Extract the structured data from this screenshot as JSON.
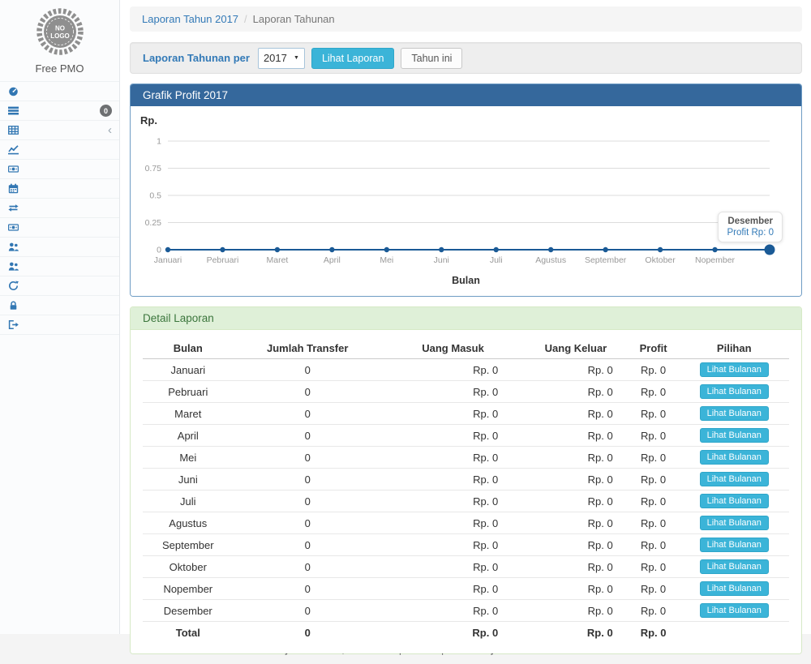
{
  "sidebar": {
    "logo_line1": "NO",
    "logo_line2": "LOGO",
    "brand": "Free PMO",
    "items": [
      {
        "icon": "dashboard-icon",
        "label": "Dashboard"
      },
      {
        "icon": "tasks-icon",
        "label": "Job on Progress",
        "badge": "0"
      },
      {
        "icon": "table-icon",
        "label": "Daftar Project",
        "chevron": "‹"
      },
      {
        "icon": "line-chart-icon",
        "label": "Penghasilan"
      },
      {
        "icon": "money-icon",
        "label": "Piutang"
      },
      {
        "icon": "calendar-icon",
        "label": "Calendar"
      },
      {
        "icon": "retweet-icon",
        "label": "Langganan"
      },
      {
        "icon": "money-icon",
        "label": "Daftar Pembayaran"
      },
      {
        "icon": "users-icon",
        "label": "Daftar Customer"
      },
      {
        "icon": "users-icon",
        "label": "Daftar Vendor"
      },
      {
        "icon": "refresh-icon",
        "label": "Backup/Restore DB"
      },
      {
        "icon": "lock-icon",
        "label": "Ganti Password"
      },
      {
        "icon": "sign-out-icon",
        "label": "Keluar"
      }
    ]
  },
  "breadcrumb": {
    "link": "Laporan Tahun 2017",
    "separator": "/",
    "current": "Laporan Tahunan"
  },
  "filter": {
    "label": "Laporan Tahunan per",
    "year_value": "2017",
    "submit_label": "Lihat Laporan",
    "this_year_label": "Tahun ini"
  },
  "chart_panel": {
    "title": "Grafik Profit 2017"
  },
  "chart_data": {
    "type": "line",
    "title": "Grafik Profit 2017",
    "x": [
      "Januari",
      "Pebruari",
      "Maret",
      "April",
      "Mei",
      "Juni",
      "Juli",
      "Agustus",
      "September",
      "Oktober",
      "Nopember",
      "Desember"
    ],
    "series": [
      {
        "name": "Profit",
        "values": [
          0,
          0,
          0,
          0,
          0,
          0,
          0,
          0,
          0,
          0,
          0,
          0
        ]
      }
    ],
    "ylabel": "Rp.",
    "xlabel": "Bulan",
    "ylim": [
      0,
      1
    ],
    "yticks": [
      0,
      0.25,
      0.5,
      0.75,
      1
    ],
    "grid": true,
    "hide_last_x_label": true,
    "line_color": "#1a5a96",
    "tooltip": {
      "title": "Desember",
      "text": "Profit Rp: 0"
    }
  },
  "detail": {
    "title": "Detail Laporan",
    "columns": [
      "Bulan",
      "Jumlah Transfer",
      "Uang Masuk",
      "Uang Keluar",
      "Profit",
      "Pilihan"
    ],
    "rows": [
      {
        "bulan": "Januari",
        "jumlah_transfer": "0",
        "uang_masuk": "Rp. 0",
        "uang_keluar": "Rp. 0",
        "profit": "Rp. 0",
        "action": "Lihat Bulanan"
      },
      {
        "bulan": "Pebruari",
        "jumlah_transfer": "0",
        "uang_masuk": "Rp. 0",
        "uang_keluar": "Rp. 0",
        "profit": "Rp. 0",
        "action": "Lihat Bulanan"
      },
      {
        "bulan": "Maret",
        "jumlah_transfer": "0",
        "uang_masuk": "Rp. 0",
        "uang_keluar": "Rp. 0",
        "profit": "Rp. 0",
        "action": "Lihat Bulanan"
      },
      {
        "bulan": "April",
        "jumlah_transfer": "0",
        "uang_masuk": "Rp. 0",
        "uang_keluar": "Rp. 0",
        "profit": "Rp. 0",
        "action": "Lihat Bulanan"
      },
      {
        "bulan": "Mei",
        "jumlah_transfer": "0",
        "uang_masuk": "Rp. 0",
        "uang_keluar": "Rp. 0",
        "profit": "Rp. 0",
        "action": "Lihat Bulanan"
      },
      {
        "bulan": "Juni",
        "jumlah_transfer": "0",
        "uang_masuk": "Rp. 0",
        "uang_keluar": "Rp. 0",
        "profit": "Rp. 0",
        "action": "Lihat Bulanan"
      },
      {
        "bulan": "Juli",
        "jumlah_transfer": "0",
        "uang_masuk": "Rp. 0",
        "uang_keluar": "Rp. 0",
        "profit": "Rp. 0",
        "action": "Lihat Bulanan"
      },
      {
        "bulan": "Agustus",
        "jumlah_transfer": "0",
        "uang_masuk": "Rp. 0",
        "uang_keluar": "Rp. 0",
        "profit": "Rp. 0",
        "action": "Lihat Bulanan"
      },
      {
        "bulan": "September",
        "jumlah_transfer": "0",
        "uang_masuk": "Rp. 0",
        "uang_keluar": "Rp. 0",
        "profit": "Rp. 0",
        "action": "Lihat Bulanan"
      },
      {
        "bulan": "Oktober",
        "jumlah_transfer": "0",
        "uang_masuk": "Rp. 0",
        "uang_keluar": "Rp. 0",
        "profit": "Rp. 0",
        "action": "Lihat Bulanan"
      },
      {
        "bulan": "Nopember",
        "jumlah_transfer": "0",
        "uang_masuk": "Rp. 0",
        "uang_keluar": "Rp. 0",
        "profit": "Rp. 0",
        "action": "Lihat Bulanan"
      },
      {
        "bulan": "Desember",
        "jumlah_transfer": "0",
        "uang_masuk": "Rp. 0",
        "uang_keluar": "Rp. 0",
        "profit": "Rp. 0",
        "action": "Lihat Bulanan"
      }
    ],
    "total": {
      "bulan": "Total",
      "jumlah_transfer": "0",
      "uang_masuk": "Rp. 0",
      "uang_keluar": "Rp. 0",
      "profit": "Rp. 0"
    }
  },
  "footer": {
    "prefix": "Powered by ",
    "link1": "Free PMO",
    "middle": ", and developed with pleasure by the ",
    "link2": "Contributors",
    "suffix": "."
  },
  "colors": {
    "accent_blue": "#337ab7",
    "panel_header_blue": "#35689c",
    "button_cyan": "#3bb4d8",
    "success_bg": "#dff0d8",
    "success_text": "#3c763d",
    "chart_line": "#1a5a96"
  }
}
